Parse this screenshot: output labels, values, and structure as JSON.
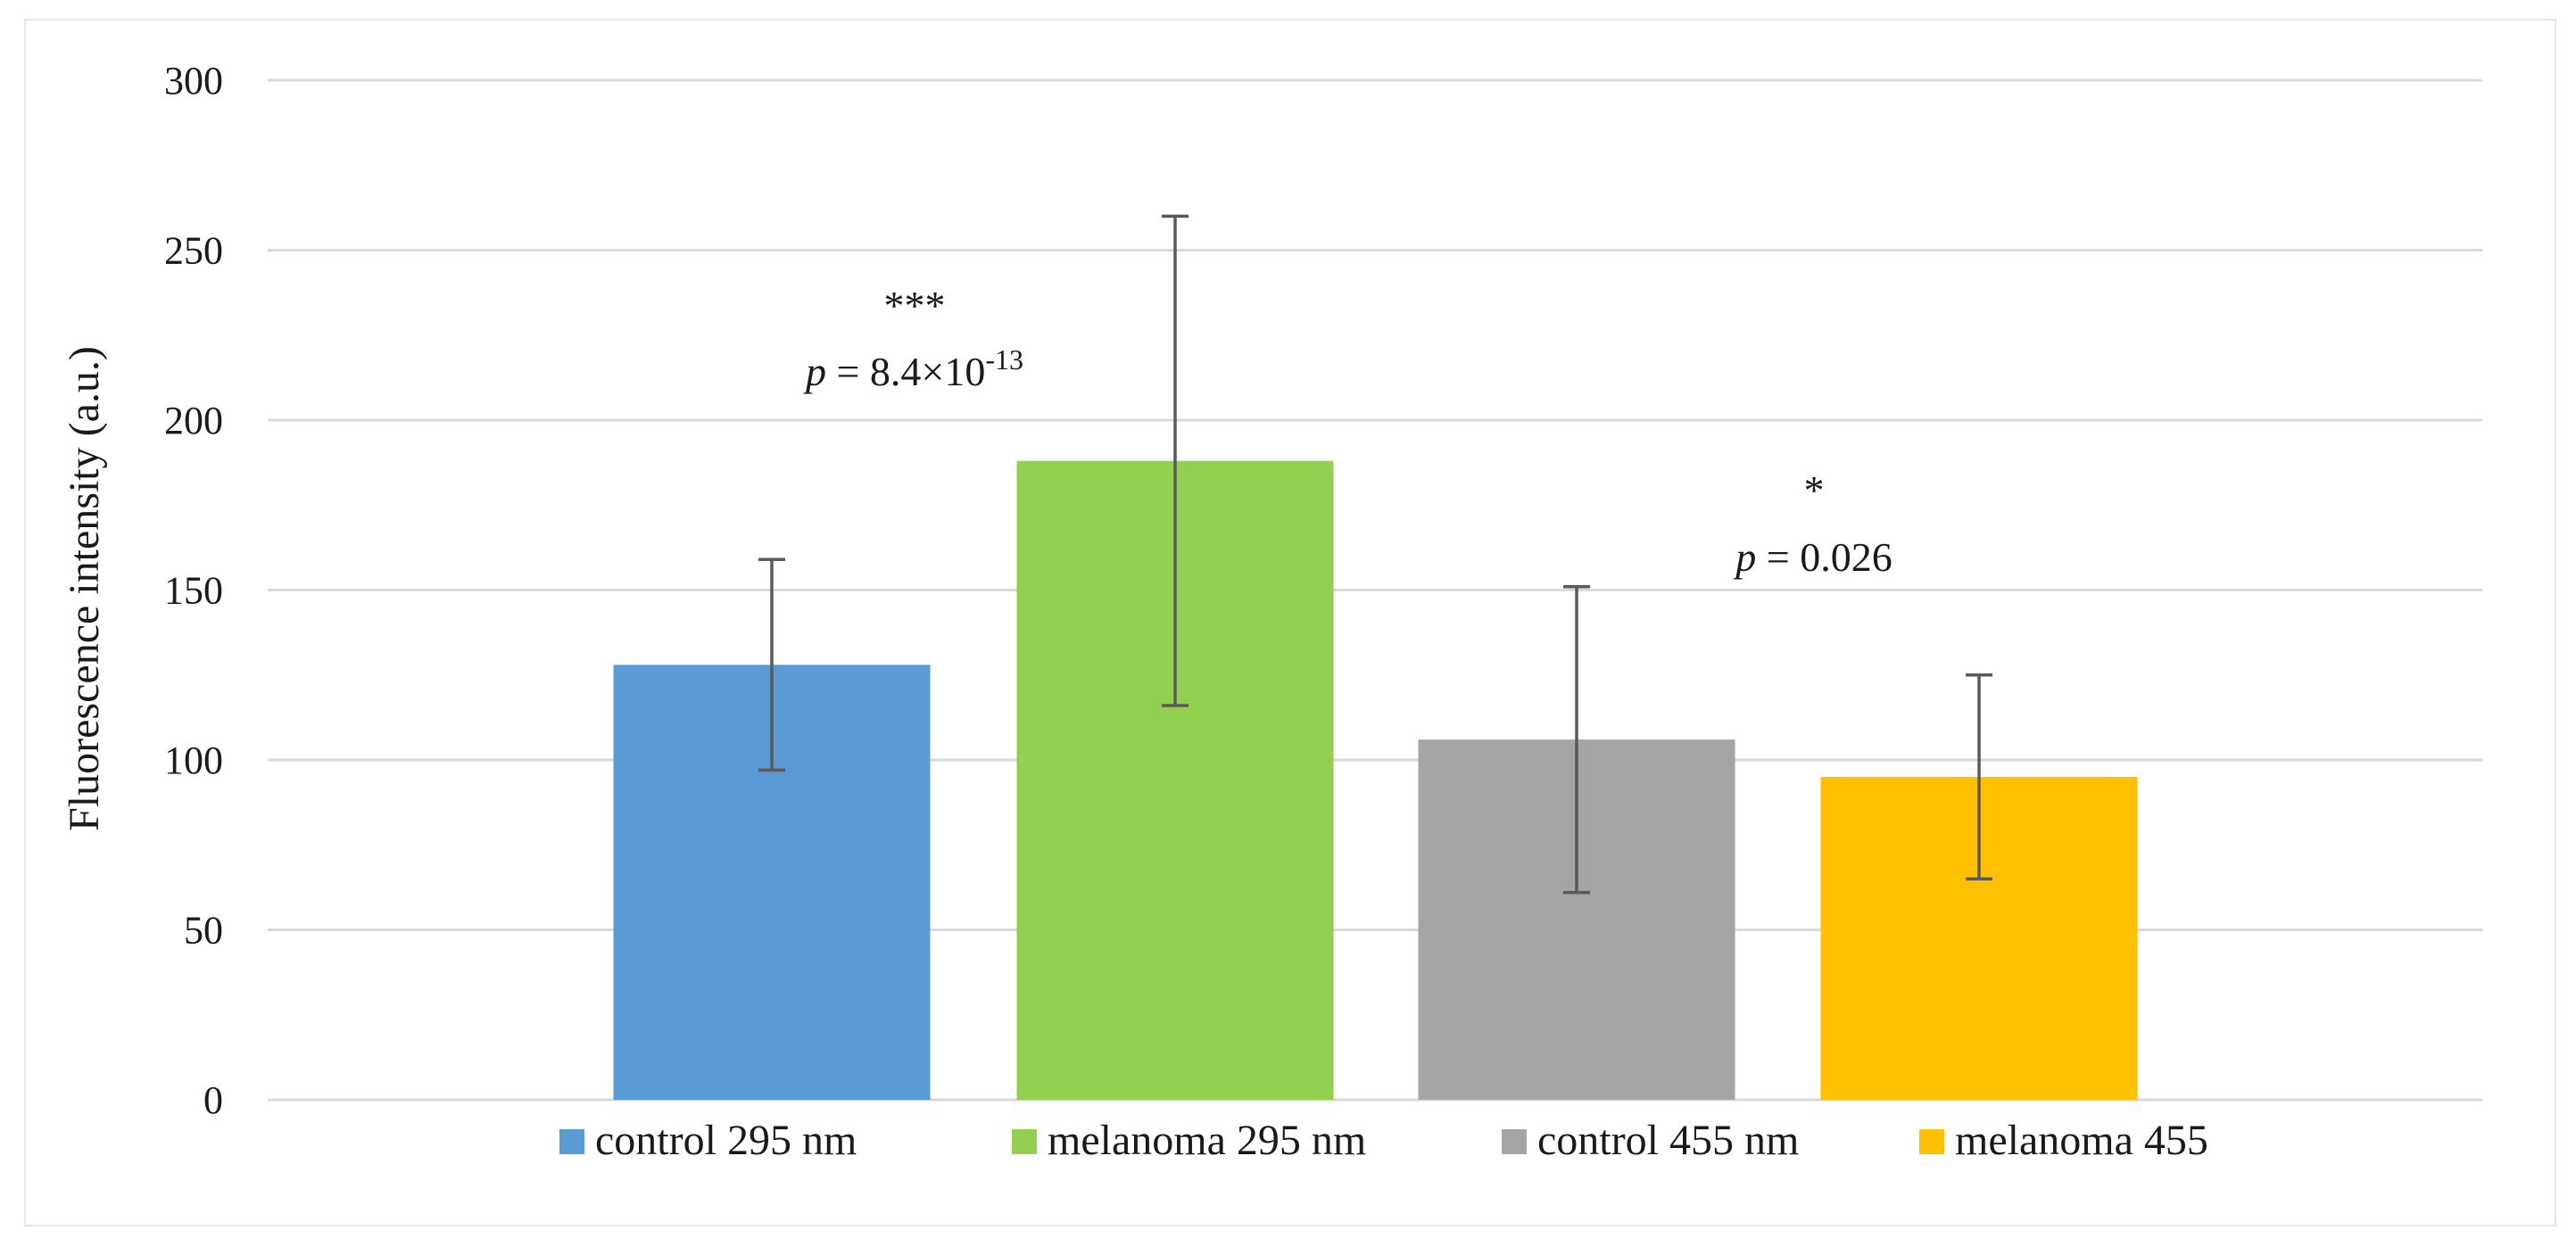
{
  "chart_data": {
    "type": "bar",
    "title": "",
    "xlabel": "",
    "ylabel": "Fluorescence intensity (a.u.)",
    "ylim": [
      0,
      300
    ],
    "yticks": [
      0,
      50,
      100,
      150,
      200,
      250,
      300
    ],
    "grid": true,
    "legend_position": "bottom",
    "categories": [
      "control 295 nm",
      "melanoma 295 nm",
      "control 455 nm",
      "melanoma 455"
    ],
    "values": [
      128,
      188,
      106,
      95
    ],
    "errors": [
      31,
      72,
      45,
      30
    ],
    "colors": [
      "#5b9bd5",
      "#92d050",
      "#a5a5a5",
      "#ffc000"
    ],
    "annotations": [
      {
        "stars": "***",
        "p_label": "p",
        "p_text": "= 8.4×10",
        "p_exp": "-13"
      },
      {
        "stars": "*",
        "p_label": "p",
        "p_text": "= 0.026",
        "p_exp": ""
      }
    ]
  }
}
